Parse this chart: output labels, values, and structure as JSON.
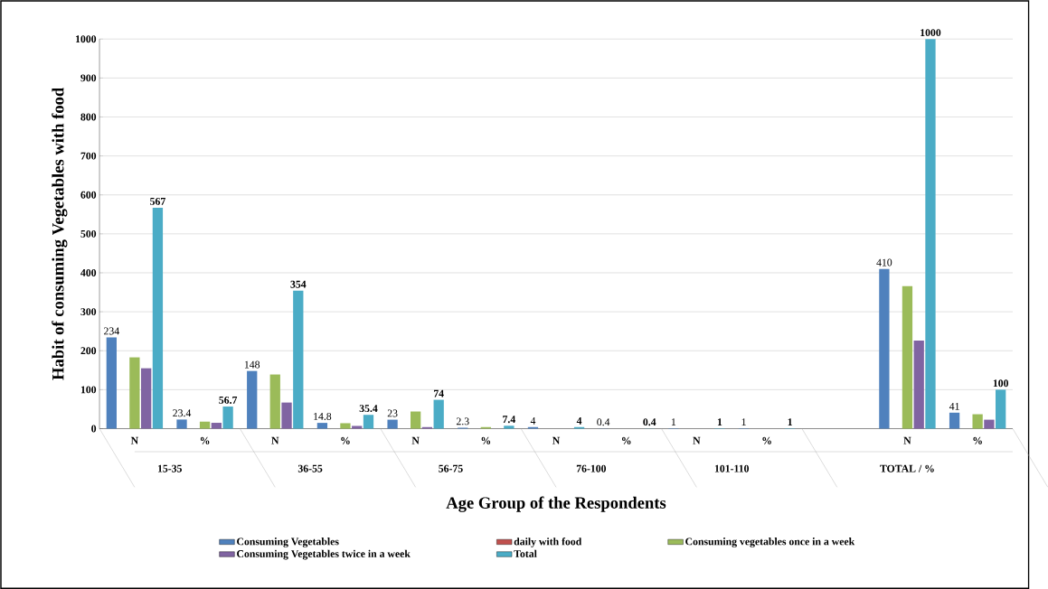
{
  "chart_data": {
    "type": "bar",
    "xlabel": "Age  Group of the Respondents",
    "ylabel": "Habit of consuming Vegetables      with   food",
    "categories": [
      "N",
      "%",
      "N",
      "%",
      "N",
      "%",
      "N",
      "%",
      "N",
      "%",
      null,
      "N",
      "%"
    ],
    "annotations": [
      "15-35",
      "36-55",
      "56-75",
      "76-100",
      "101-110",
      "TOTAL / %"
    ],
    "series": [
      {
        "name": "Consuming Vegetables",
        "color": "#4f81bd",
        "values": [
          234,
          23.4,
          148,
          14.8,
          23,
          2.3,
          4,
          0.4,
          1,
          1,
          null,
          410,
          41
        ],
        "value_labels": [
          "234",
          "23.4",
          "148",
          "14.8",
          "23",
          "2.3",
          "4",
          "0.4",
          "1",
          "1",
          null,
          "410",
          "41"
        ]
      },
      {
        "name": "daily   with food",
        "color": "#c0504d",
        "values": [
          null,
          null,
          null,
          null,
          null,
          null,
          null,
          null,
          null,
          null,
          null,
          null,
          null
        ]
      },
      {
        "name": "Consuming   vegetables   once in   a week",
        "color": "#9bbb59",
        "values": [
          183,
          18,
          139,
          14,
          44,
          4,
          0,
          0,
          0,
          0,
          null,
          366,
          37
        ]
      },
      {
        "name": "Consuming Vegetables twice in a week",
        "color": "#8064a2",
        "values": [
          155,
          15,
          67,
          7,
          4,
          0,
          0,
          0,
          0,
          0,
          null,
          226,
          23
        ]
      },
      {
        "name": "Total",
        "color": "#4bacc6",
        "values": [
          567,
          56.7,
          354,
          35.4,
          74,
          7.4,
          4,
          0.4,
          1,
          1,
          null,
          1000,
          100
        ],
        "value_labels": [
          "567",
          "56.7",
          "354",
          "35.4",
          "74",
          "7.4",
          "4",
          "0.4",
          "1",
          "1",
          null,
          "1000",
          "100"
        ]
      }
    ],
    "ylim": [
      0,
      1000
    ],
    "yticks": [
      0,
      100,
      200,
      300,
      400,
      500,
      600,
      700,
      800,
      900,
      1000
    ],
    "grid": "y",
    "legend": "bottom"
  }
}
